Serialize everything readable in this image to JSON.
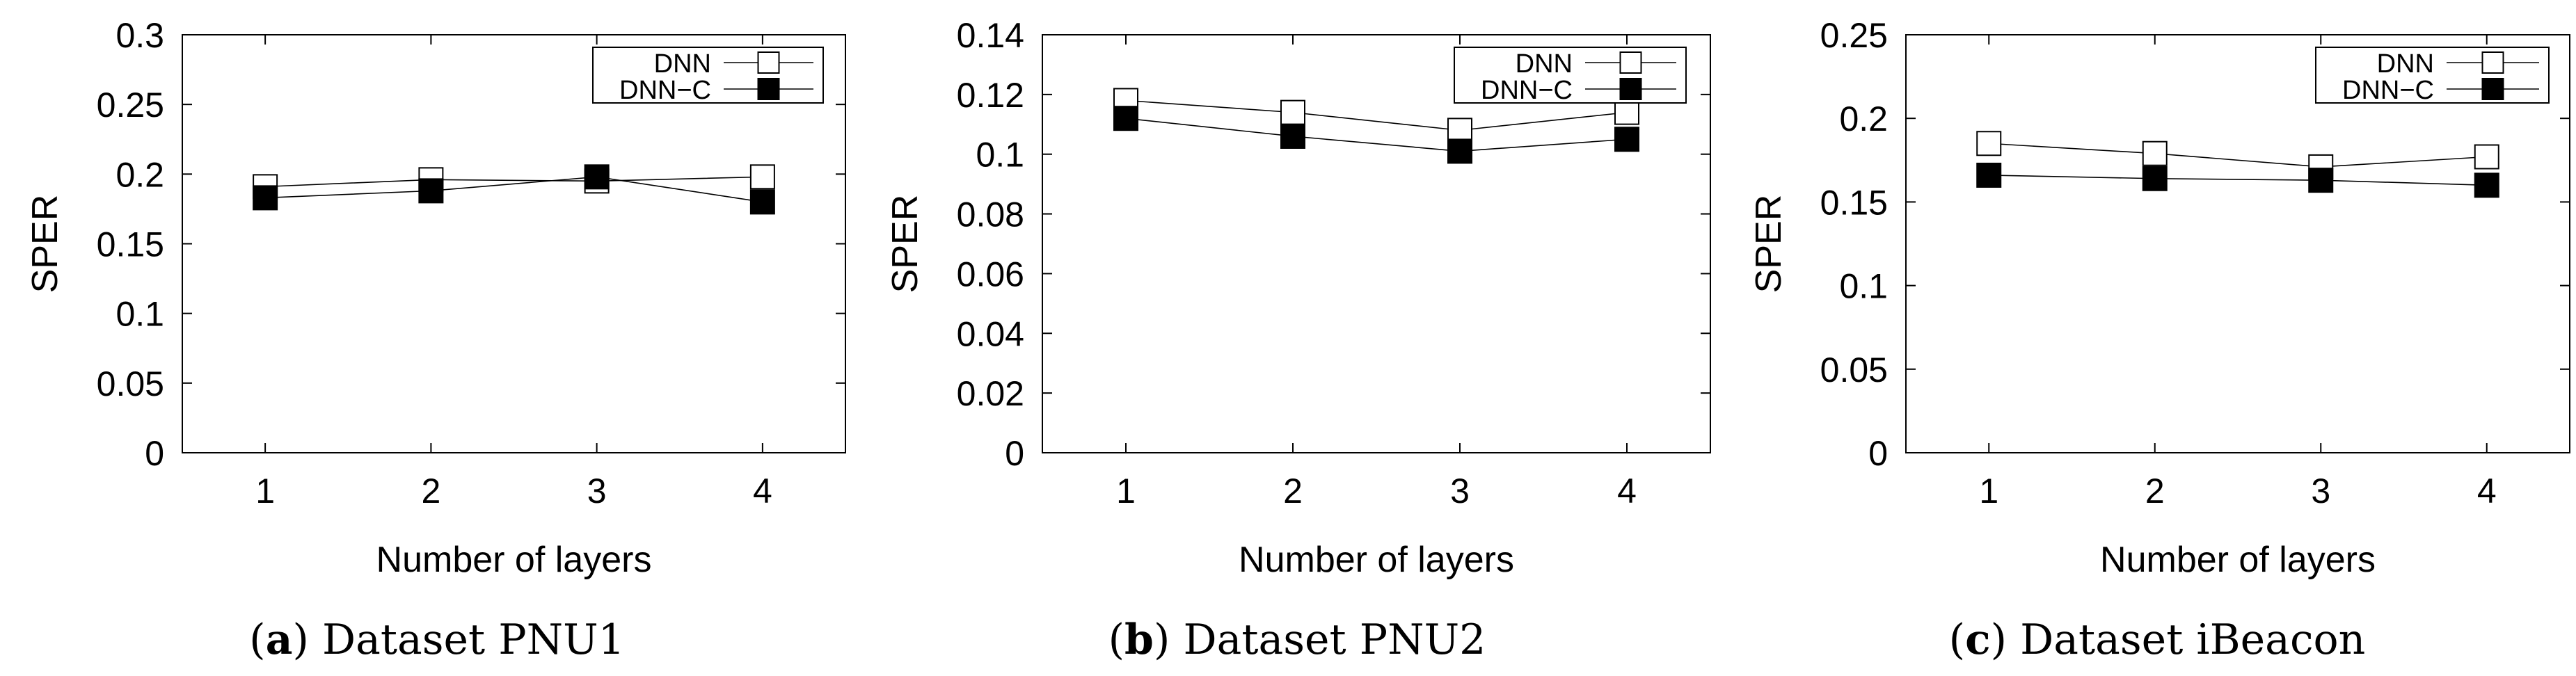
{
  "chart_data": [
    {
      "type": "line",
      "caption_letter": "a",
      "caption_text": " Dataset PNU1",
      "xlabel": "Number of layers",
      "ylabel": "SPER",
      "categories": [
        "1",
        "2",
        "3",
        "4"
      ],
      "ylim": [
        0,
        0.3
      ],
      "yticks": [
        "0",
        "0.05",
        "0.1",
        "0.15",
        "0.2",
        "0.25",
        "0.3"
      ],
      "legend_position": "top-right",
      "series": [
        {
          "name": "DNN",
          "marker": "open-square",
          "values": [
            0.191,
            0.196,
            0.195,
            0.198
          ]
        },
        {
          "name": "DNN−C",
          "marker": "filled-square",
          "values": [
            0.183,
            0.188,
            0.198,
            0.18
          ]
        }
      ]
    },
    {
      "type": "line",
      "caption_letter": "b",
      "caption_text": " Dataset PNU2",
      "xlabel": "Number of layers",
      "ylabel": "SPER",
      "categories": [
        "1",
        "2",
        "3",
        "4"
      ],
      "ylim": [
        0,
        0.14
      ],
      "yticks": [
        "0",
        "0.02",
        "0.04",
        "0.06",
        "0.08",
        "0.1",
        "0.12",
        "0.14"
      ],
      "legend_position": "top-right",
      "series": [
        {
          "name": "DNN",
          "marker": "open-square",
          "values": [
            0.118,
            0.114,
            0.108,
            0.114
          ]
        },
        {
          "name": "DNN−C",
          "marker": "filled-square",
          "values": [
            0.112,
            0.106,
            0.101,
            0.105
          ]
        }
      ]
    },
    {
      "type": "line",
      "caption_letter": "c",
      "caption_text": " Dataset iBeacon",
      "xlabel": "Number of layers",
      "ylabel": "SPER",
      "categories": [
        "1",
        "2",
        "3",
        "4"
      ],
      "ylim": [
        0,
        0.25
      ],
      "yticks": [
        "0",
        "0.05",
        "0.1",
        "0.15",
        "0.2",
        "0.25"
      ],
      "legend_position": "top-right",
      "series": [
        {
          "name": "DNN",
          "marker": "open-square",
          "values": [
            0.185,
            0.179,
            0.171,
            0.177
          ]
        },
        {
          "name": "DNN−C",
          "marker": "filled-square",
          "values": [
            0.166,
            0.164,
            0.163,
            0.16
          ]
        }
      ]
    }
  ]
}
